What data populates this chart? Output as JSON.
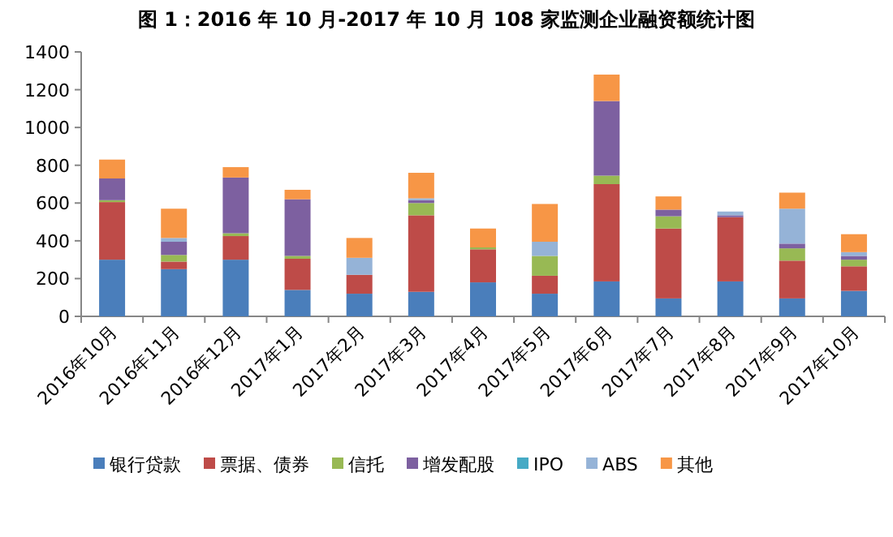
{
  "chart_data": {
    "type": "bar",
    "stacked": true,
    "title": "图 1：2016 年 10 月-2017 年 10 月 108 家监测企业融资额统计图",
    "categories": [
      "2016年10月",
      "2016年11月",
      "2016年12月",
      "2017年1月",
      "2017年2月",
      "2017年3月",
      "2017年4月",
      "2017年5月",
      "2017年6月",
      "2017年7月",
      "2017年8月",
      "2017年9月",
      "2017年10月"
    ],
    "series": [
      {
        "name": "银行贷款",
        "color": "#4a7ebb",
        "values": [
          300,
          250,
          300,
          140,
          120,
          130,
          180,
          120,
          185,
          95,
          185,
          95,
          135
        ]
      },
      {
        "name": "票据、债券",
        "color": "#be4b48",
        "values": [
          305,
          40,
          125,
          165,
          100,
          405,
          175,
          95,
          515,
          370,
          340,
          200,
          130
        ]
      },
      {
        "name": "信托",
        "color": "#98b954",
        "values": [
          10,
          35,
          15,
          15,
          null,
          65,
          10,
          105,
          45,
          65,
          null,
          65,
          35
        ]
      },
      {
        "name": "增发配股",
        "color": "#7d60a0",
        "values": [
          115,
          70,
          295,
          300,
          null,
          15,
          null,
          null,
          395,
          35,
          10,
          25,
          20
        ]
      },
      {
        "name": "IPO",
        "color": "#46aac5",
        "values": [
          null,
          null,
          null,
          null,
          null,
          null,
          null,
          null,
          null,
          null,
          null,
          null,
          null
        ]
      },
      {
        "name": "ABS",
        "color": "#95b3d7",
        "values": [
          null,
          20,
          null,
          null,
          90,
          10,
          null,
          75,
          null,
          null,
          20,
          185,
          20
        ]
      },
      {
        "name": "其他",
        "color": "#f79646",
        "values": [
          100,
          155,
          55,
          50,
          105,
          135,
          100,
          200,
          140,
          70,
          null,
          85,
          95
        ]
      }
    ],
    "ylim": [
      0,
      1400
    ],
    "yticks": [
      0,
      200,
      400,
      600,
      800,
      1000,
      1200,
      1400
    ],
    "grid": false,
    "legend": "bottom"
  }
}
